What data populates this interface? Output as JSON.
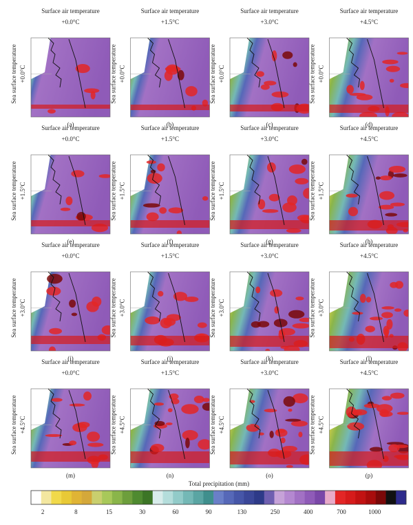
{
  "panels": [
    {
      "title": "Surface air temperature",
      "sat": "+0.0°C",
      "side_title": "Sea surface temperature",
      "sst": "+0.0°C",
      "letter": "(a)"
    },
    {
      "title": "Surface air temperature",
      "sat": "+1.5°C",
      "side_title": "Sea surface temperature",
      "sst": "+0.0°C",
      "letter": "(b)"
    },
    {
      "title": "Surface air temperature",
      "sat": "+3.0°C",
      "side_title": "Sea surface temperature",
      "sst": "+0.0°C",
      "letter": "(c)"
    },
    {
      "title": "Surface air temperature",
      "sat": "+4.5°C",
      "side_title": "Sea surface temperature",
      "sst": "+0.0°C",
      "letter": "(d)"
    },
    {
      "title": "Surface air temperature",
      "sat": "+0.0°C",
      "side_title": "Sea surface temperature",
      "sst": "+1.5°C",
      "letter": "(e)"
    },
    {
      "title": "Surface air temperature",
      "sat": "+1.5°C",
      "side_title": "Sea surface temperature",
      "sst": "+1.5°C",
      "letter": "(f)"
    },
    {
      "title": "Surface air temperature",
      "sat": "+3.0°C",
      "side_title": "Sea surface temperature",
      "sst": "+1.5°C",
      "letter": "(g)"
    },
    {
      "title": "Surface air temperature",
      "sat": "+4.5°C",
      "side_title": "Sea surface temperature",
      "sst": "+1.5°C",
      "letter": "(h)"
    },
    {
      "title": "Surface air temperature",
      "sat": "+0.0°C",
      "side_title": "Sea surface temperature",
      "sst": "+3.0°C",
      "letter": "(i)"
    },
    {
      "title": "Surface air temperature",
      "sat": "+1.5°C",
      "side_title": "Sea surface temperature",
      "sst": "+3.0°C",
      "letter": "(j)"
    },
    {
      "title": "Surface air temperature",
      "sat": "+3.0°C",
      "side_title": "Sea surface temperature",
      "sst": "+3.0°C",
      "letter": "(k)"
    },
    {
      "title": "Surface air temperature",
      "sat": "+4.5°C",
      "side_title": "Sea surface temperature",
      "sst": "+3.0°C",
      "letter": "(l)"
    },
    {
      "title": "Surface air temperature",
      "sat": "+0.0°C",
      "side_title": "Sea surface temperature",
      "sst": "+4.5°C",
      "letter": "(m)"
    },
    {
      "title": "Surface air temperature",
      "sat": "+1.5°C",
      "side_title": "Sea surface temperature",
      "sst": "+4.5°C",
      "letter": "(n)"
    },
    {
      "title": "Surface air temperature",
      "sat": "+3.0°C",
      "side_title": "Sea surface temperature",
      "sst": "+4.5°C",
      "letter": "(o)"
    },
    {
      "title": "Surface air temperature",
      "sat": "+4.5°C",
      "side_title": "Sea surface temperature",
      "sst": "+4.5°C",
      "letter": "(p)"
    }
  ],
  "colorbar": {
    "title": "Total precipitation (mm)",
    "labels": [
      2,
      8,
      15,
      30,
      60,
      90,
      130,
      250,
      400,
      700,
      1000
    ],
    "colors": [
      "#ffffff",
      "#f3e7a0",
      "#f1d94a",
      "#e8c936",
      "#e0b435",
      "#d4a83a",
      "#c9cf6e",
      "#a8c85a",
      "#8ab54a",
      "#6d9e3c",
      "#4f8a30",
      "#3c7526",
      "#d8eceb",
      "#b4dddb",
      "#92cbc9",
      "#74b8b6",
      "#5aa5a3",
      "#3f8f8d",
      "#6a7fc8",
      "#5668b8",
      "#4656a8",
      "#3a4798",
      "#2d3a88",
      "#6f5fb0",
      "#c6a2d8",
      "#b488d0",
      "#a271c4",
      "#8f5bb8",
      "#7a47a8",
      "#e8aac8",
      "#e32626",
      "#d61b1b",
      "#c21212",
      "#a80c0c",
      "#7a0808",
      "#111111",
      "#2e2b8c"
    ]
  }
}
